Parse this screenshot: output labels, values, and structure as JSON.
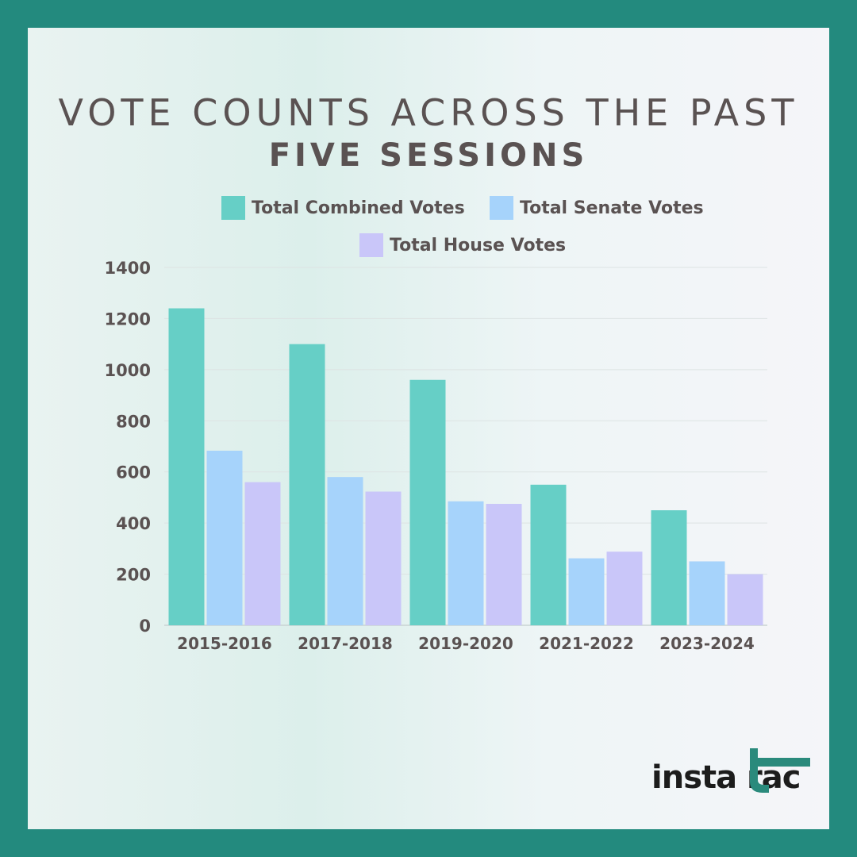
{
  "title": {
    "line1": "VOTE COUNTS ACROSS THE PAST",
    "line2": "FIVE SESSIONS"
  },
  "brand": {
    "logo_text": "insta rac",
    "logo_mark_icon": "t-letter-mark-icon",
    "logo_color": "#2a8a7c"
  },
  "chart_data": {
    "type": "bar",
    "categories": [
      "2015-2016",
      "2017-2018",
      "2019-2020",
      "2021-2022",
      "2023-2024"
    ],
    "series": [
      {
        "name": "Total Combined Votes",
        "color": "#66cfc6",
        "values": [
          1240,
          1100,
          960,
          550,
          450
        ]
      },
      {
        "name": "Total Senate Votes",
        "color": "#a6d3fb",
        "values": [
          683,
          580,
          485,
          262,
          250
        ]
      },
      {
        "name": "Total House Votes",
        "color": "#c9c6f9",
        "values": [
          560,
          523,
          475,
          288,
          200
        ]
      }
    ],
    "yticks": [
      0,
      200,
      400,
      600,
      800,
      1000,
      1200,
      1400
    ],
    "ylim": [
      0,
      1400
    ],
    "grid": true,
    "legend_position": "top"
  }
}
